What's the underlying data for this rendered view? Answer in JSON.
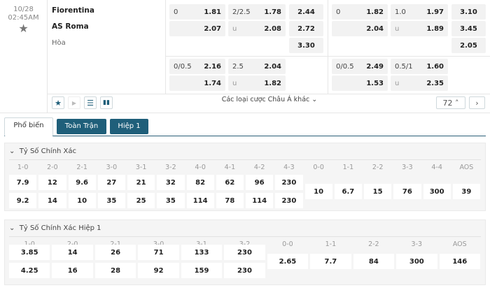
{
  "match": {
    "date": "10/28",
    "time": "02:45AM",
    "home": "Fiorentina",
    "away": "AS Roma",
    "draw": "Hòa"
  },
  "odds_full": {
    "main": [
      {
        "hdp": "0",
        "home": "1.81",
        "ou": "2/2.5",
        "over": "1.78",
        "x1": "2.44"
      },
      {
        "hdp": "",
        "home": "2.07",
        "ou": "u",
        "over": "2.08",
        "x1": "2.72"
      },
      {
        "x1": "3.30"
      }
    ],
    "alt": [
      {
        "hdp": "0/0.5",
        "home": "2.16",
        "ou": "2.5",
        "over": "2.04"
      },
      {
        "hdp": "",
        "home": "1.74",
        "ou": "u",
        "over": "1.82"
      }
    ]
  },
  "odds_half": {
    "main": [
      {
        "hdp": "0",
        "home": "1.82",
        "ou": "1.0",
        "over": "1.97",
        "x1": "3.10"
      },
      {
        "hdp": "",
        "home": "2.04",
        "ou": "u",
        "over": "1.89",
        "x1": "3.45"
      },
      {
        "x1": "2.05"
      }
    ],
    "alt": [
      {
        "hdp": "0/0.5",
        "home": "2.49",
        "ou": "0.5/1",
        "over": "1.60"
      },
      {
        "hdp": "",
        "home": "1.53",
        "ou": "u",
        "over": "2.35"
      }
    ]
  },
  "toolbar": {
    "more_label": "Các loại cược Châu Á khác",
    "more_count": "72",
    "icons": [
      "star-icon",
      "play-icon",
      "scoreboard-icon",
      "stats-icon"
    ]
  },
  "tabs": [
    {
      "label": "Phổ biến",
      "active": true
    },
    {
      "label": "Toàn Trận"
    },
    {
      "label": "Hiệp 1"
    }
  ],
  "correct_score": {
    "title": "Tỷ Số Chính Xác",
    "win_labels": [
      "1-0",
      "2-0",
      "2-1",
      "3-0",
      "3-1",
      "3-2",
      "4-0",
      "4-1",
      "4-2",
      "4-3"
    ],
    "home": [
      "7.9",
      "12",
      "9.6",
      "27",
      "21",
      "32",
      "82",
      "62",
      "96",
      "230"
    ],
    "away": [
      "9.2",
      "14",
      "10",
      "35",
      "25",
      "35",
      "114",
      "78",
      "114",
      "230"
    ],
    "draw_labels": [
      "0-0",
      "1-1",
      "2-2",
      "3-3",
      "4-4",
      "AOS"
    ],
    "draw": [
      "10",
      "6.7",
      "15",
      "76",
      "300",
      "39"
    ]
  },
  "correct_score_h1": {
    "title": "Tỷ Số Chính Xác Hiệp 1",
    "win_labels": [
      "1-0",
      "2-0",
      "2-1",
      "3-0",
      "3-1",
      "3-2"
    ],
    "home": [
      "3.85",
      "14",
      "26",
      "71",
      "133",
      "230"
    ],
    "away": [
      "4.25",
      "16",
      "28",
      "92",
      "159",
      "230"
    ],
    "draw_labels": [
      "0-0",
      "1-1",
      "2-2",
      "3-3",
      "AOS"
    ],
    "draw": [
      "2.65",
      "7.7",
      "84",
      "300",
      "146"
    ]
  }
}
